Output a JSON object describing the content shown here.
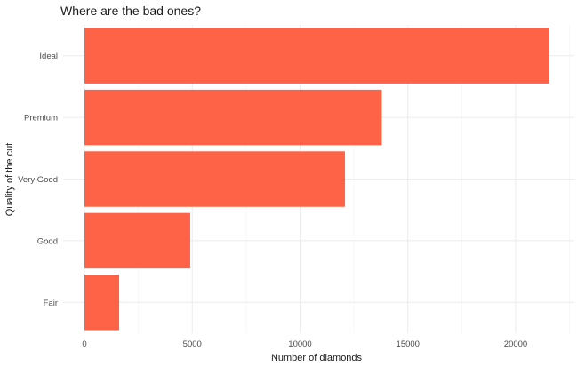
{
  "chart_data": {
    "type": "bar",
    "orientation": "horizontal",
    "title": "Where are the bad ones?",
    "xlabel": "Number of diamonds",
    "ylabel": "Quality of the cut",
    "categories": [
      "Fair",
      "Good",
      "Very Good",
      "Premium",
      "Ideal"
    ],
    "values": [
      1610,
      4906,
      12082,
      13791,
      21551
    ],
    "xlim": [
      0,
      22600
    ],
    "xticks": [
      0,
      5000,
      10000,
      15000,
      20000
    ],
    "grid": true,
    "bar_color": "#ff6347",
    "legend": "none"
  }
}
